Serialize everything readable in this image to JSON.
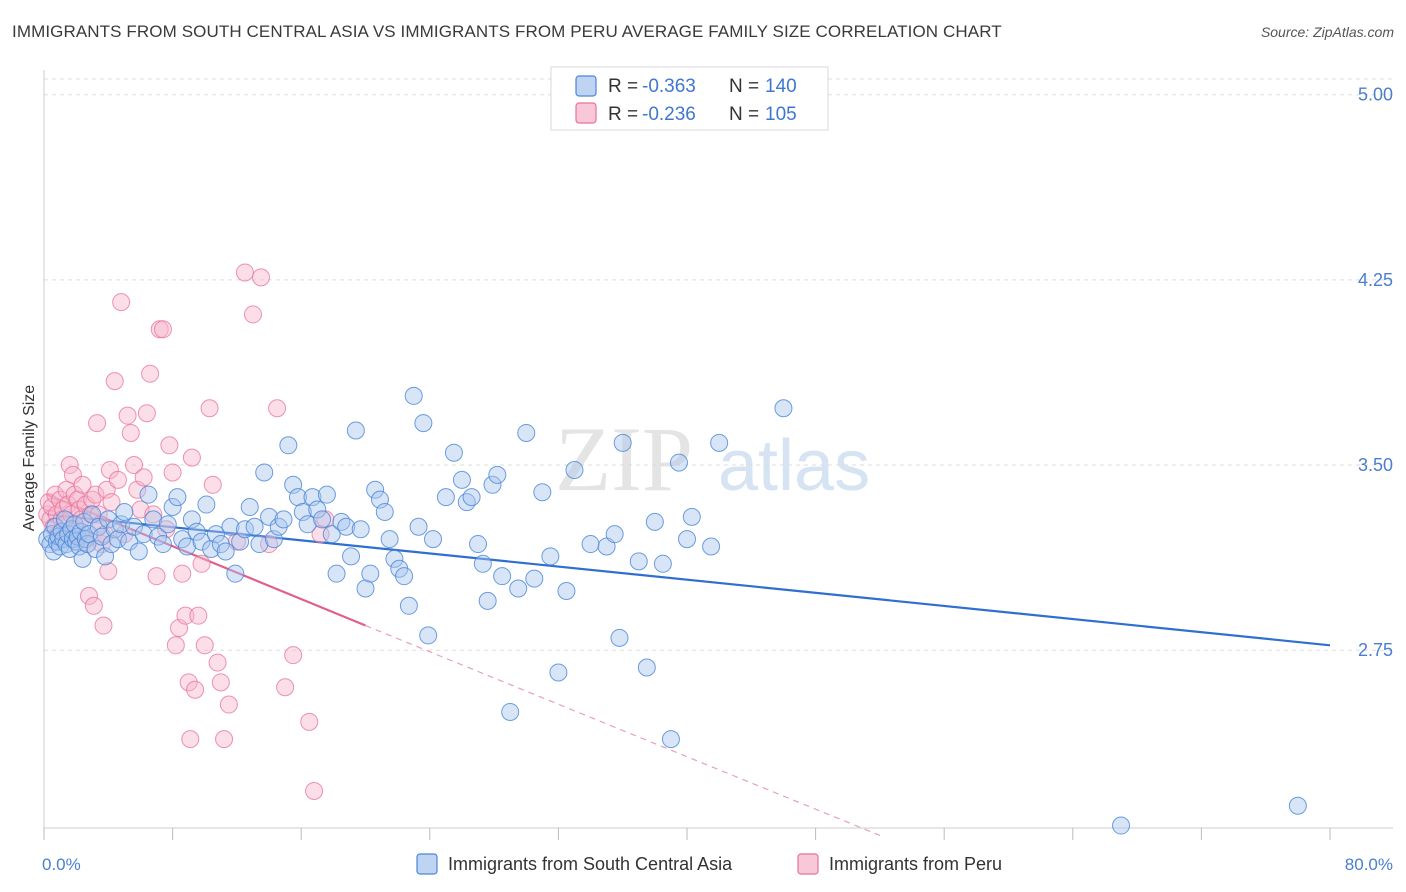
{
  "title": "IMMIGRANTS FROM SOUTH CENTRAL ASIA VS IMMIGRANTS FROM PERU AVERAGE FAMILY SIZE CORRELATION CHART",
  "source": "Source: ZipAtlas.com",
  "watermark": {
    "zip": "ZIP",
    "atlas": "atlas"
  },
  "colors": {
    "blue": "#4a86d8",
    "blue_fill": "#a9c6ee",
    "pink": "#e8709a",
    "pink_fill": "#f6b6cb",
    "tick_label": "#4a7fd0",
    "grid": "#dddddd"
  },
  "legend_top": [
    {
      "r_label": "R = ",
      "r_value": "-0.363",
      "n_label": "N = ",
      "n_value": "140"
    },
    {
      "r_label": "R = ",
      "r_value": "-0.236",
      "n_label": "N = ",
      "n_value": "105"
    }
  ],
  "chart_data": {
    "type": "scatter",
    "xlabel": "",
    "ylabel": "Average Family Size",
    "xlim": [
      0,
      80
    ],
    "ylim": [
      2.03,
      5.1
    ],
    "x_tick_labels": {
      "left": "0.0%",
      "right": "80.0%"
    },
    "y_ticks": [
      5.0,
      4.25,
      3.5,
      2.75
    ],
    "y_tick_labels": [
      "5.00",
      "4.25",
      "3.50",
      "2.75"
    ],
    "grid": true,
    "legend_placement": "bottom-center",
    "series": [
      {
        "name": "Immigrants from South Central Asia",
        "trend": {
          "x": [
            0.2,
            80.0
          ],
          "y": [
            3.3,
            2.77
          ]
        },
        "points": [
          [
            0.2,
            3.2
          ],
          [
            0.4,
            3.18
          ],
          [
            0.5,
            3.22
          ],
          [
            0.6,
            3.15
          ],
          [
            0.7,
            3.25
          ],
          [
            0.8,
            3.19
          ],
          [
            0.9,
            3.21
          ],
          [
            1.0,
            3.17
          ],
          [
            1.1,
            3.23
          ],
          [
            1.2,
            3.2
          ],
          [
            1.3,
            3.28
          ],
          [
            1.4,
            3.18
          ],
          [
            1.5,
            3.22
          ],
          [
            1.6,
            3.16
          ],
          [
            1.7,
            3.24
          ],
          [
            1.8,
            3.2
          ],
          [
            1.9,
            3.26
          ],
          [
            2.0,
            3.19
          ],
          [
            2.1,
            3.21
          ],
          [
            2.2,
            3.17
          ],
          [
            2.3,
            3.23
          ],
          [
            2.4,
            3.12
          ],
          [
            2.5,
            3.27
          ],
          [
            2.6,
            3.2
          ],
          [
            2.7,
            3.18
          ],
          [
            2.8,
            3.22
          ],
          [
            3.0,
            3.3
          ],
          [
            3.2,
            3.16
          ],
          [
            3.4,
            3.25
          ],
          [
            3.6,
            3.21
          ],
          [
            3.8,
            3.13
          ],
          [
            4.0,
            3.28
          ],
          [
            4.2,
            3.18
          ],
          [
            4.4,
            3.24
          ],
          [
            4.6,
            3.2
          ],
          [
            4.8,
            3.26
          ],
          [
            5.0,
            3.31
          ],
          [
            5.3,
            3.19
          ],
          [
            5.6,
            3.25
          ],
          [
            5.9,
            3.15
          ],
          [
            6.2,
            3.22
          ],
          [
            6.5,
            3.38
          ],
          [
            6.8,
            3.28
          ],
          [
            7.1,
            3.21
          ],
          [
            7.4,
            3.18
          ],
          [
            7.7,
            3.26
          ],
          [
            8.0,
            3.33
          ],
          [
            8.3,
            3.37
          ],
          [
            8.6,
            3.2
          ],
          [
            8.9,
            3.17
          ],
          [
            9.2,
            3.28
          ],
          [
            9.5,
            3.23
          ],
          [
            9.8,
            3.19
          ],
          [
            10.1,
            3.34
          ],
          [
            10.4,
            3.16
          ],
          [
            10.7,
            3.22
          ],
          [
            11.0,
            3.18
          ],
          [
            11.3,
            3.15
          ],
          [
            11.6,
            3.25
          ],
          [
            11.9,
            3.06
          ],
          [
            12.2,
            3.19
          ],
          [
            12.5,
            3.24
          ],
          [
            12.8,
            3.33
          ],
          [
            13.1,
            3.25
          ],
          [
            13.4,
            3.18
          ],
          [
            13.7,
            3.47
          ],
          [
            14.0,
            3.29
          ],
          [
            14.3,
            3.2
          ],
          [
            14.6,
            3.25
          ],
          [
            14.9,
            3.28
          ],
          [
            15.2,
            3.58
          ],
          [
            15.5,
            3.42
          ],
          [
            15.8,
            3.37
          ],
          [
            16.1,
            3.31
          ],
          [
            16.4,
            3.26
          ],
          [
            16.7,
            3.37
          ],
          [
            17.0,
            3.32
          ],
          [
            17.3,
            3.28
          ],
          [
            17.6,
            3.38
          ],
          [
            17.9,
            3.22
          ],
          [
            18.2,
            3.06
          ],
          [
            18.5,
            3.27
          ],
          [
            18.8,
            3.25
          ],
          [
            19.1,
            3.13
          ],
          [
            19.4,
            3.64
          ],
          [
            19.7,
            3.24
          ],
          [
            20.0,
            3.0
          ],
          [
            20.3,
            3.06
          ],
          [
            20.6,
            3.4
          ],
          [
            20.9,
            3.36
          ],
          [
            21.2,
            3.31
          ],
          [
            21.5,
            3.2
          ],
          [
            21.8,
            3.12
          ],
          [
            22.1,
            3.08
          ],
          [
            22.4,
            3.05
          ],
          [
            22.7,
            2.93
          ],
          [
            23.0,
            3.78
          ],
          [
            23.3,
            3.25
          ],
          [
            23.6,
            3.67
          ],
          [
            23.9,
            2.81
          ],
          [
            24.2,
            3.2
          ],
          [
            25.0,
            3.37
          ],
          [
            25.5,
            3.55
          ],
          [
            26.0,
            3.44
          ],
          [
            26.3,
            3.35
          ],
          [
            26.6,
            3.37
          ],
          [
            27.0,
            3.18
          ],
          [
            27.3,
            3.1
          ],
          [
            27.6,
            2.95
          ],
          [
            27.9,
            3.42
          ],
          [
            28.2,
            3.46
          ],
          [
            28.5,
            3.05
          ],
          [
            29.0,
            2.5
          ],
          [
            29.5,
            3.0
          ],
          [
            30.0,
            3.63
          ],
          [
            30.5,
            3.04
          ],
          [
            31.0,
            3.39
          ],
          [
            31.5,
            3.13
          ],
          [
            32.0,
            2.66
          ],
          [
            32.5,
            2.99
          ],
          [
            33.0,
            3.48
          ],
          [
            34.0,
            3.18
          ],
          [
            35.0,
            3.17
          ],
          [
            35.5,
            3.22
          ],
          [
            35.8,
            2.8
          ],
          [
            36.0,
            3.59
          ],
          [
            37.0,
            3.11
          ],
          [
            37.5,
            2.68
          ],
          [
            38.0,
            3.27
          ],
          [
            38.5,
            3.1
          ],
          [
            39.0,
            2.39
          ],
          [
            39.5,
            3.51
          ],
          [
            40.0,
            3.2
          ],
          [
            40.3,
            3.29
          ],
          [
            41.5,
            3.17
          ],
          [
            42.0,
            3.59
          ],
          [
            46.0,
            3.73
          ],
          [
            78.0,
            2.12
          ],
          [
            67.0,
            2.04
          ]
        ]
      },
      {
        "name": "Immigrants from Peru",
        "trend": {
          "x": [
            0.2,
            20.0
          ],
          "y": [
            3.38,
            2.85
          ]
        },
        "trend_dashed": {
          "x": [
            20.0,
            52.0
          ],
          "y": [
            2.85,
            2.0
          ]
        },
        "points": [
          [
            0.2,
            3.3
          ],
          [
            0.3,
            3.35
          ],
          [
            0.4,
            3.28
          ],
          [
            0.5,
            3.33
          ],
          [
            0.6,
            3.25
          ],
          [
            0.7,
            3.38
          ],
          [
            0.8,
            3.3
          ],
          [
            0.9,
            3.22
          ],
          [
            1.0,
            3.36
          ],
          [
            1.1,
            3.28
          ],
          [
            1.2,
            3.32
          ],
          [
            1.3,
            3.26
          ],
          [
            1.4,
            3.4
          ],
          [
            1.5,
            3.34
          ],
          [
            1.6,
            3.5
          ],
          [
            1.7,
            3.3
          ],
          [
            1.8,
            3.46
          ],
          [
            1.9,
            3.38
          ],
          [
            2.0,
            3.24
          ],
          [
            2.1,
            3.36
          ],
          [
            2.2,
            3.32
          ],
          [
            2.3,
            3.28
          ],
          [
            2.4,
            3.42
          ],
          [
            2.5,
            3.2
          ],
          [
            2.6,
            3.34
          ],
          [
            2.7,
            3.18
          ],
          [
            2.8,
            2.97
          ],
          [
            2.9,
            3.3
          ],
          [
            3.0,
            3.36
          ],
          [
            3.1,
            2.93
          ],
          [
            3.2,
            3.38
          ],
          [
            3.3,
            3.67
          ],
          [
            3.4,
            3.3
          ],
          [
            3.5,
            3.26
          ],
          [
            3.6,
            3.18
          ],
          [
            3.7,
            2.85
          ],
          [
            3.8,
            3.22
          ],
          [
            3.9,
            3.4
          ],
          [
            4.0,
            3.07
          ],
          [
            4.1,
            3.48
          ],
          [
            4.2,
            3.35
          ],
          [
            4.4,
            3.84
          ],
          [
            4.6,
            3.44
          ],
          [
            4.8,
            4.16
          ],
          [
            5.0,
            3.22
          ],
          [
            5.2,
            3.7
          ],
          [
            5.4,
            3.63
          ],
          [
            5.6,
            3.5
          ],
          [
            5.8,
            3.4
          ],
          [
            6.0,
            3.32
          ],
          [
            6.2,
            3.45
          ],
          [
            6.4,
            3.71
          ],
          [
            6.6,
            3.87
          ],
          [
            6.8,
            3.3
          ],
          [
            7.0,
            3.05
          ],
          [
            7.2,
            4.05
          ],
          [
            7.4,
            4.05
          ],
          [
            7.6,
            3.24
          ],
          [
            7.8,
            3.58
          ],
          [
            8.0,
            3.47
          ],
          [
            8.2,
            2.77
          ],
          [
            8.4,
            2.84
          ],
          [
            8.6,
            3.06
          ],
          [
            8.8,
            2.89
          ],
          [
            9.0,
            2.62
          ],
          [
            9.2,
            3.53
          ],
          [
            9.4,
            2.59
          ],
          [
            9.6,
            2.89
          ],
          [
            9.8,
            3.1
          ],
          [
            10.0,
            2.77
          ],
          [
            10.5,
            3.42
          ],
          [
            10.8,
            2.7
          ],
          [
            11.0,
            2.62
          ],
          [
            11.5,
            2.53
          ],
          [
            12.0,
            3.19
          ],
          [
            12.5,
            4.28
          ],
          [
            13.0,
            4.11
          ],
          [
            13.5,
            4.26
          ],
          [
            14.0,
            3.18
          ],
          [
            14.5,
            3.73
          ],
          [
            15.0,
            2.6
          ],
          [
            15.5,
            2.73
          ],
          [
            16.5,
            2.46
          ],
          [
            16.8,
            2.18
          ],
          [
            17.2,
            3.22
          ],
          [
            17.5,
            3.28
          ],
          [
            11.2,
            2.39
          ],
          [
            9.1,
            2.39
          ],
          [
            10.3,
            3.73
          ]
        ]
      }
    ]
  },
  "legend_bottom": [
    {
      "label": "Immigrants from South Central Asia"
    },
    {
      "label": "Immigrants from Peru"
    }
  ]
}
